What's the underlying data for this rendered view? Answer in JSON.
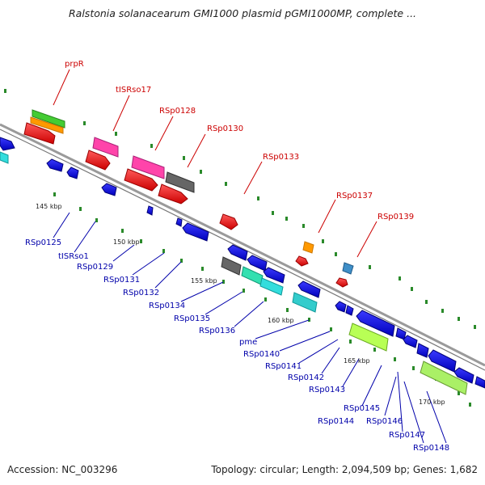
{
  "title": "Ralstonia solanacearum GMI1000 plasmid pGMI1000MP, complete ...",
  "footer": {
    "accession": "Accession: NC_003296",
    "summary": "Topology: circular; Length: 2,094,509 bp; Genes: 1,682"
  },
  "scale_labels": [
    "145 kbp",
    "150 kbp",
    "155 kbp",
    "160 kbp",
    "165 kbp",
    "170 kbp"
  ],
  "gene_labels_top": [
    "prpR",
    "tISRso17",
    "RSp0128",
    "RSp0130",
    "RSp0133",
    "RSp0137",
    "RSp0139"
  ],
  "gene_labels_bottom": [
    "RSp0125",
    "tISRso1",
    "RSp0129",
    "RSp0131",
    "RSp0132",
    "RSp0134",
    "RSp0135",
    "RSp0136",
    "pme",
    "RSp0140",
    "RSp0141",
    "RSp0142",
    "RSp0143",
    "RSp0144",
    "RSp0145",
    "RSp0146",
    "RSp0147",
    "RSp0148"
  ],
  "colors": {
    "forward_label": "#cc0000",
    "reverse_label": "#0000aa",
    "tick": "#007700",
    "backbone": "#999999"
  }
}
